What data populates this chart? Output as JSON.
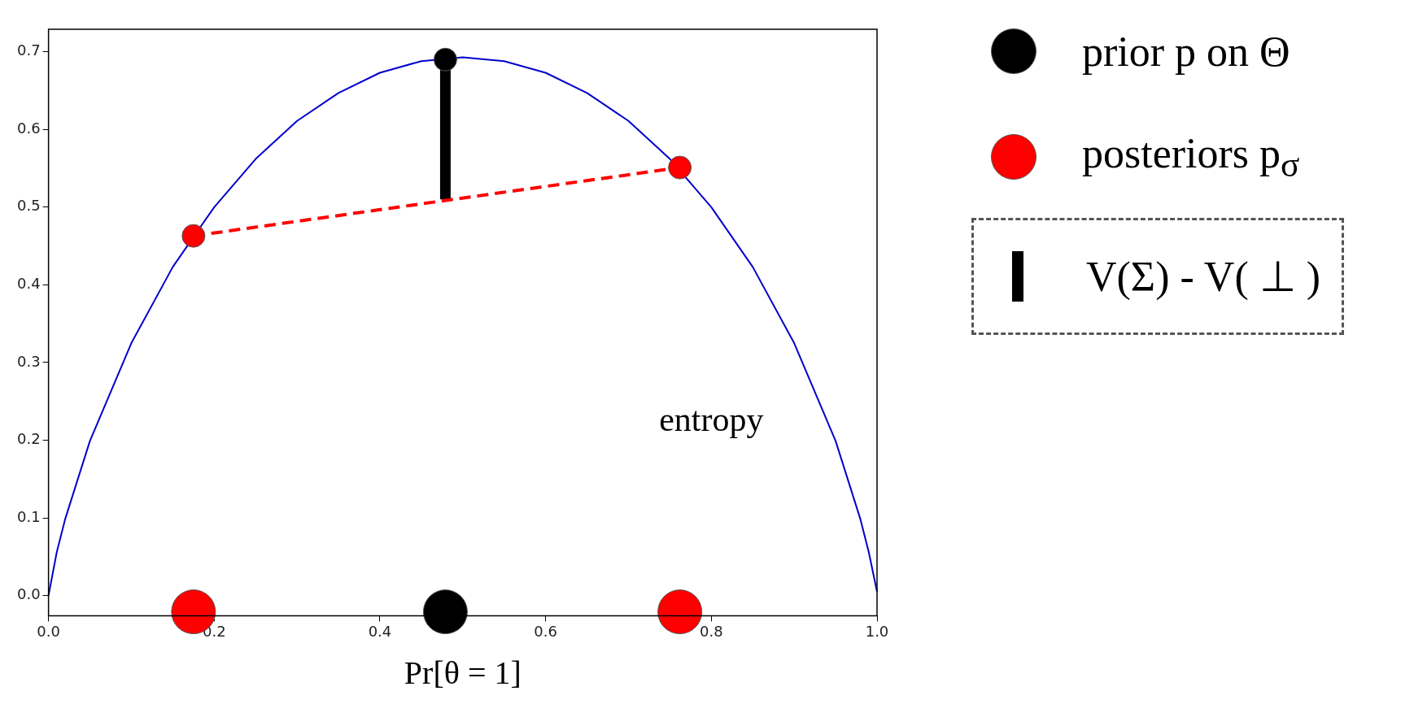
{
  "chart_data": {
    "type": "line",
    "xlabel": "Pr[θ = 1]",
    "xlim": [
      0,
      1
    ],
    "ylim": [
      -0.026,
      0.729
    ],
    "xticks": [
      {
        "value": 0,
        "label": "0.0"
      },
      {
        "value": 0.2,
        "label": "0.2"
      },
      {
        "value": 0.4,
        "label": "0.4"
      },
      {
        "value": 0.6,
        "label": "0.6"
      },
      {
        "value": 0.8,
        "label": "0.8"
      },
      {
        "value": 1,
        "label": "1.0"
      }
    ],
    "yticks": [
      {
        "value": 0,
        "label": "0.0"
      },
      {
        "value": 0.1,
        "label": "0.1"
      },
      {
        "value": 0.2,
        "label": "0.2"
      },
      {
        "value": 0.3,
        "label": "0.3"
      },
      {
        "value": 0.4,
        "label": "0.4"
      },
      {
        "value": 0.5,
        "label": "0.5"
      },
      {
        "value": 0.6,
        "label": "0.6"
      },
      {
        "value": 0.7,
        "label": "0.7"
      }
    ],
    "grid": false,
    "legend": "right",
    "annotations": [
      "entropy"
    ],
    "series": [
      {
        "color": "#0000cc",
        "x": [
          0,
          0.01,
          0.02,
          0.05,
          0.1,
          0.15,
          0.2,
          0.25,
          0.3,
          0.35,
          0.4,
          0.45,
          0.5,
          0.55,
          0.6,
          0.65,
          0.7,
          0.75,
          0.8,
          0.85,
          0.9,
          0.95,
          0.98,
          0.99,
          1
        ],
        "values": [
          0,
          0.056,
          0.098,
          0.199,
          0.325,
          0.423,
          0.5,
          0.562,
          0.611,
          0.647,
          0.673,
          0.688,
          0.693,
          0.688,
          0.673,
          0.647,
          0.611,
          0.562,
          0.5,
          0.423,
          0.325,
          0.199,
          0.098,
          0.056,
          0.005
        ]
      },
      {
        "color": "#ff0000",
        "line_style": "dashed",
        "x": [
          0.175,
          0.762
        ],
        "values": [
          0.463,
          0.551
        ]
      },
      {
        "name": "V(Σ) - V( ⊥ )",
        "color": "#000000",
        "x": [
          0.479,
          0.479
        ],
        "values": [
          0.51,
          0.69
        ]
      },
      {
        "type": "scatter",
        "name": "prior p on Θ",
        "color": "#000000",
        "x": [
          0.479
        ],
        "values": [
          0.69
        ]
      },
      {
        "type": "scatter",
        "name": "posteriors p$_{σ}$",
        "color": "#ff0000",
        "x": [
          0.175,
          0.762
        ],
        "values": [
          0.463,
          0.551
        ]
      },
      {
        "type": "scatter",
        "color": "#000000",
        "x": [
          0.479
        ],
        "values": [
          -0.021
        ]
      },
      {
        "type": "scatter",
        "color": "#ff0000",
        "x": [
          0.175,
          0.762
        ],
        "values": [
          -0.021,
          -0.021
        ]
      }
    ]
  }
}
